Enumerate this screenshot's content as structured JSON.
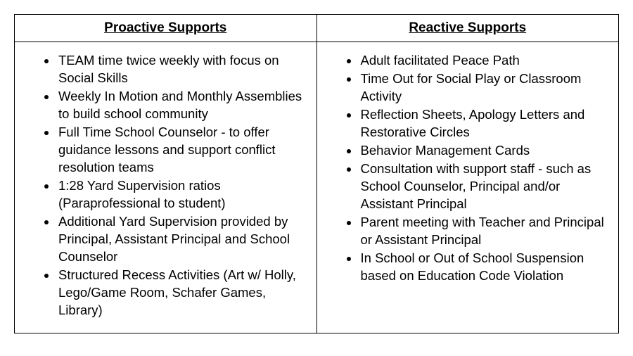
{
  "table": {
    "columns": [
      {
        "header": "Proactive Supports"
      },
      {
        "header": "Reactive Supports"
      }
    ],
    "proactive": [
      "TEAM time twice weekly with focus on Social Skills",
      "Weekly In Motion and Monthly Assemblies to build school community",
      "Full Time School Counselor - to offer guidance lessons and support conflict resolution teams",
      "1:28 Yard Supervision ratios (Paraprofessional to student)",
      "Additional Yard Supervision provided by Principal, Assistant Principal and School Counselor",
      "Structured Recess Activities (Art w/ Holly, Lego/Game Room, Schafer Games, Library)"
    ],
    "reactive": [
      "Adult facilitated Peace Path",
      "Time Out for Social Play or Classroom Activity",
      "Reflection Sheets, Apology Letters and Restorative Circles",
      "Behavior Management Cards",
      "Consultation with support staff - such as School Counselor, Principal and/or Assistant Principal",
      "Parent meeting with Teacher and Principal or Assistant Principal",
      "In School or Out of School Suspension based on Education Code Violation"
    ]
  }
}
